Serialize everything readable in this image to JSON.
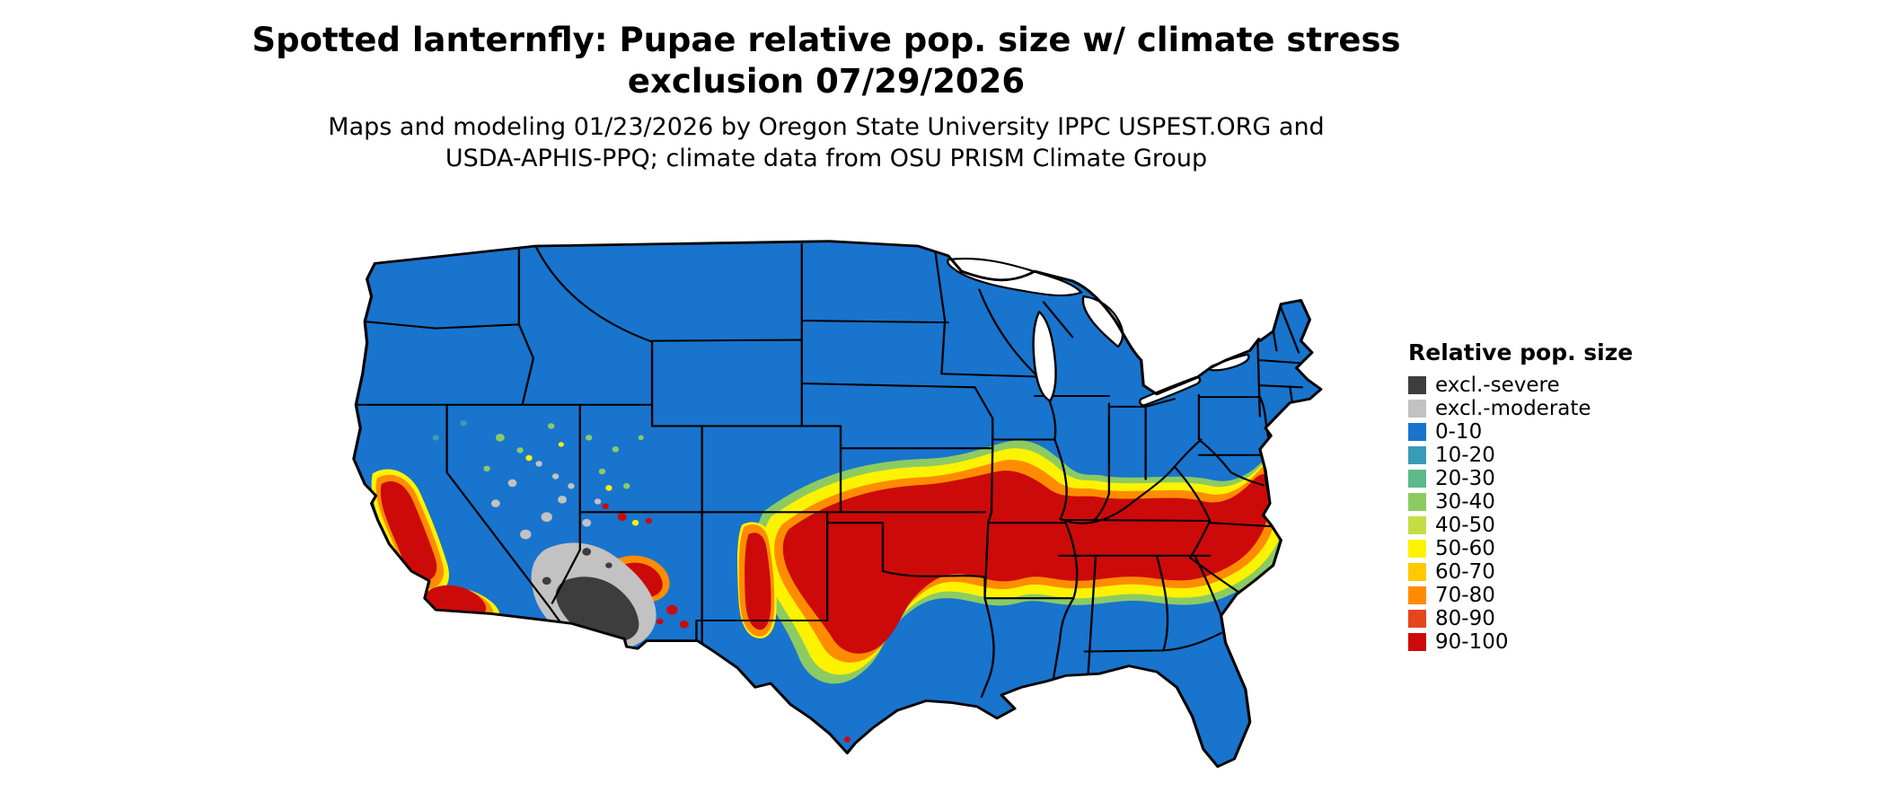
{
  "header": {
    "title_line1": "Spotted lanternfly: Pupae relative pop. size w/ climate stress",
    "title_line2": "exclusion 07/29/2026",
    "subtitle_line1": "Maps and modeling 01/23/2026 by Oregon State University IPPC USPEST.ORG and",
    "subtitle_line2": "USDA-APHIS-PPQ; climate data from OSU PRISM Climate Group"
  },
  "map": {
    "region": "continental-united-states",
    "boundary_color": "#000000",
    "water_color": "#FFFFFF"
  },
  "legend": {
    "title": "Relative pop. size",
    "items": [
      {
        "label": "excl.-severe",
        "color": "#3D3D3D"
      },
      {
        "label": "excl.-moderate",
        "color": "#C2C2C2"
      },
      {
        "label": "0-10",
        "color": "#1874CD"
      },
      {
        "label": "10-20",
        "color": "#3A9BB8"
      },
      {
        "label": "20-30",
        "color": "#5DB88A"
      },
      {
        "label": "30-40",
        "color": "#8CCB62"
      },
      {
        "label": "40-50",
        "color": "#C3DE45"
      },
      {
        "label": "50-60",
        "color": "#FDF300"
      },
      {
        "label": "60-70",
        "color": "#FFC800"
      },
      {
        "label": "70-80",
        "color": "#FF8C00"
      },
      {
        "label": "80-90",
        "color": "#E6451D"
      },
      {
        "label": "90-100",
        "color": "#CC0A0A"
      }
    ]
  }
}
